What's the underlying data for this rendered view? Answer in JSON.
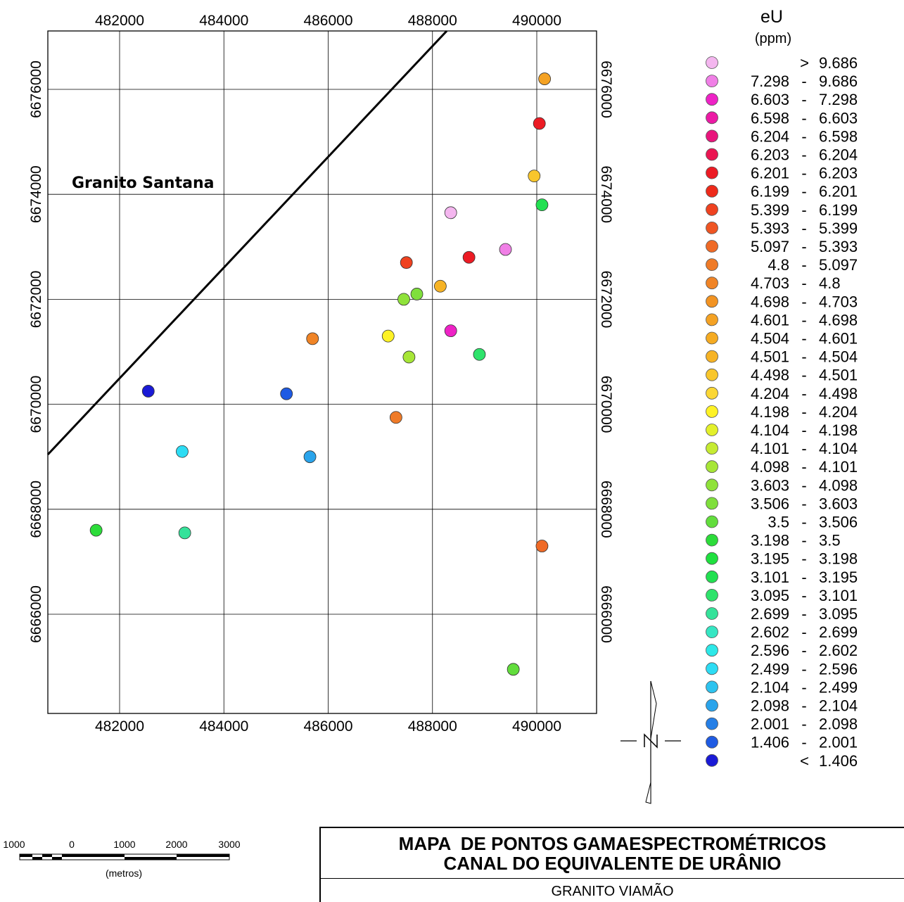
{
  "legend": {
    "title": "eU",
    "unit": "(ppm)",
    "classes": [
      {
        "low": ">",
        "high": "9.686",
        "color": "#f4b6ef"
      },
      {
        "low": "7.298",
        "high": "9.686",
        "color": "#f07fe6"
      },
      {
        "low": "6.603",
        "high": "7.298",
        "color": "#ee22c6"
      },
      {
        "low": "6.598",
        "high": "6.603",
        "color": "#ec1aa5"
      },
      {
        "low": "6.204",
        "high": "6.598",
        "color": "#e8157c"
      },
      {
        "low": "6.203",
        "high": "6.204",
        "color": "#ea1652"
      },
      {
        "low": "6.201",
        "high": "6.203",
        "color": "#ec1b24"
      },
      {
        "low": "6.199",
        "high": "6.201",
        "color": "#ee2a1a"
      },
      {
        "low": "5.399",
        "high": "6.199",
        "color": "#ef4220"
      },
      {
        "low": "5.393",
        "high": "5.399",
        "color": "#ef5523"
      },
      {
        "low": "5.097",
        "high": "5.393",
        "color": "#ef6a26"
      },
      {
        "low": "4.8",
        "high": "5.097",
        "color": "#ef7b28"
      },
      {
        "low": "4.703",
        "high": "4.8",
        "color": "#f08426"
      },
      {
        "low": "4.698",
        "high": "4.703",
        "color": "#f29322"
      },
      {
        "low": "4.601",
        "high": "4.698",
        "color": "#f4a224"
      },
      {
        "low": "4.504",
        "high": "4.601",
        "color": "#f5ab22"
      },
      {
        "low": "4.501",
        "high": "4.504",
        "color": "#f6b325"
      },
      {
        "low": "4.498",
        "high": "4.501",
        "color": "#f8c62c"
      },
      {
        "low": "4.204",
        "high": "4.498",
        "color": "#fbd735"
      },
      {
        "low": "4.198",
        "high": "4.204",
        "color": "#fef225"
      },
      {
        "low": "4.104",
        "high": "4.198",
        "color": "#e3f02b"
      },
      {
        "low": "4.101",
        "high": "4.104",
        "color": "#c6eb32"
      },
      {
        "low": "4.098",
        "high": "4.101",
        "color": "#a7e637"
      },
      {
        "low": "3.603",
        "high": "4.098",
        "color": "#8fe23a"
      },
      {
        "low": "3.506",
        "high": "3.603",
        "color": "#7fdf3c"
      },
      {
        "low": "3.5",
        "high": "3.506",
        "color": "#62dd3c"
      },
      {
        "low": "3.198",
        "high": "3.5",
        "color": "#2cdc3a"
      },
      {
        "low": "3.195",
        "high": "3.198",
        "color": "#1fe03f"
      },
      {
        "low": "3.101",
        "high": "3.195",
        "color": "#22e051"
      },
      {
        "low": "3.095",
        "high": "3.101",
        "color": "#2ee36b"
      },
      {
        "low": "2.699",
        "high": "3.095",
        "color": "#35e29a"
      },
      {
        "low": "2.602",
        "high": "2.699",
        "color": "#35e6c3"
      },
      {
        "low": "2.596",
        "high": "2.602",
        "color": "#2de8e8"
      },
      {
        "low": "2.499",
        "high": "2.596",
        "color": "#2ddcf4"
      },
      {
        "low": "2.104",
        "high": "2.499",
        "color": "#2ec3ef"
      },
      {
        "low": "2.098",
        "high": "2.104",
        "color": "#2aa4eb"
      },
      {
        "low": "2.001",
        "high": "2.098",
        "color": "#257fe6"
      },
      {
        "low": "1.406",
        "high": "2.001",
        "color": "#1f5be3"
      },
      {
        "low": "<",
        "high": "1.406",
        "color": "#1a1ad6"
      }
    ]
  },
  "map": {
    "x_ticks": [
      "482000",
      "484000",
      "486000",
      "488000",
      "490000"
    ],
    "y_ticks": [
      "6666000",
      "6668000",
      "6670000",
      "6672000",
      "6674000",
      "6676000"
    ],
    "region_label": "Granito Santana",
    "points": [
      {
        "e": 490150,
        "n": 6676200,
        "color": "#f4a224"
      },
      {
        "e": 490050,
        "n": 6675350,
        "color": "#ec1b24"
      },
      {
        "e": 489950,
        "n": 6674350,
        "color": "#f8c62c"
      },
      {
        "e": 490100,
        "n": 6673800,
        "color": "#22e051"
      },
      {
        "e": 488350,
        "n": 6673650,
        "color": "#f4b6ef"
      },
      {
        "e": 489400,
        "n": 6672950,
        "color": "#f07fe6"
      },
      {
        "e": 488700,
        "n": 6672800,
        "color": "#ec1b24"
      },
      {
        "e": 487500,
        "n": 6672700,
        "color": "#ef4220"
      },
      {
        "e": 488150,
        "n": 6672250,
        "color": "#f6b325"
      },
      {
        "e": 487700,
        "n": 6672100,
        "color": "#7fdf3c"
      },
      {
        "e": 487450,
        "n": 6672000,
        "color": "#8fe23a"
      },
      {
        "e": 487150,
        "n": 6671300,
        "color": "#fef225"
      },
      {
        "e": 488350,
        "n": 6671400,
        "color": "#ee22c6"
      },
      {
        "e": 485700,
        "n": 6671250,
        "color": "#f08426"
      },
      {
        "e": 487550,
        "n": 6670900,
        "color": "#a7e637"
      },
      {
        "e": 488900,
        "n": 6670950,
        "color": "#2ee36b"
      },
      {
        "e": 482550,
        "n": 6670250,
        "color": "#1a1ad6"
      },
      {
        "e": 485200,
        "n": 6670200,
        "color": "#1f5be3"
      },
      {
        "e": 487300,
        "n": 6669750,
        "color": "#ef7b28"
      },
      {
        "e": 483200,
        "n": 6669100,
        "color": "#2ddcf4"
      },
      {
        "e": 485650,
        "n": 6669000,
        "color": "#2aa4eb"
      },
      {
        "e": 481550,
        "n": 6667600,
        "color": "#2cdc3a"
      },
      {
        "e": 483250,
        "n": 6667550,
        "color": "#35e29a"
      },
      {
        "e": 490100,
        "n": 6667300,
        "color": "#ef6a26"
      },
      {
        "e": 489550,
        "n": 6664950,
        "color": "#62dd3c"
      }
    ]
  },
  "scale": {
    "labels": [
      "1000",
      "0",
      "1000",
      "2000",
      "3000"
    ],
    "unit": "(metros)"
  },
  "title": {
    "line1": "MAPA  DE PONTOS GAMAESPECTROMÉTRICOS",
    "line2": "CANAL DO EQUIVALENTE DE URÂNIO",
    "subtitle": "GRANITO VIAMÃO"
  }
}
